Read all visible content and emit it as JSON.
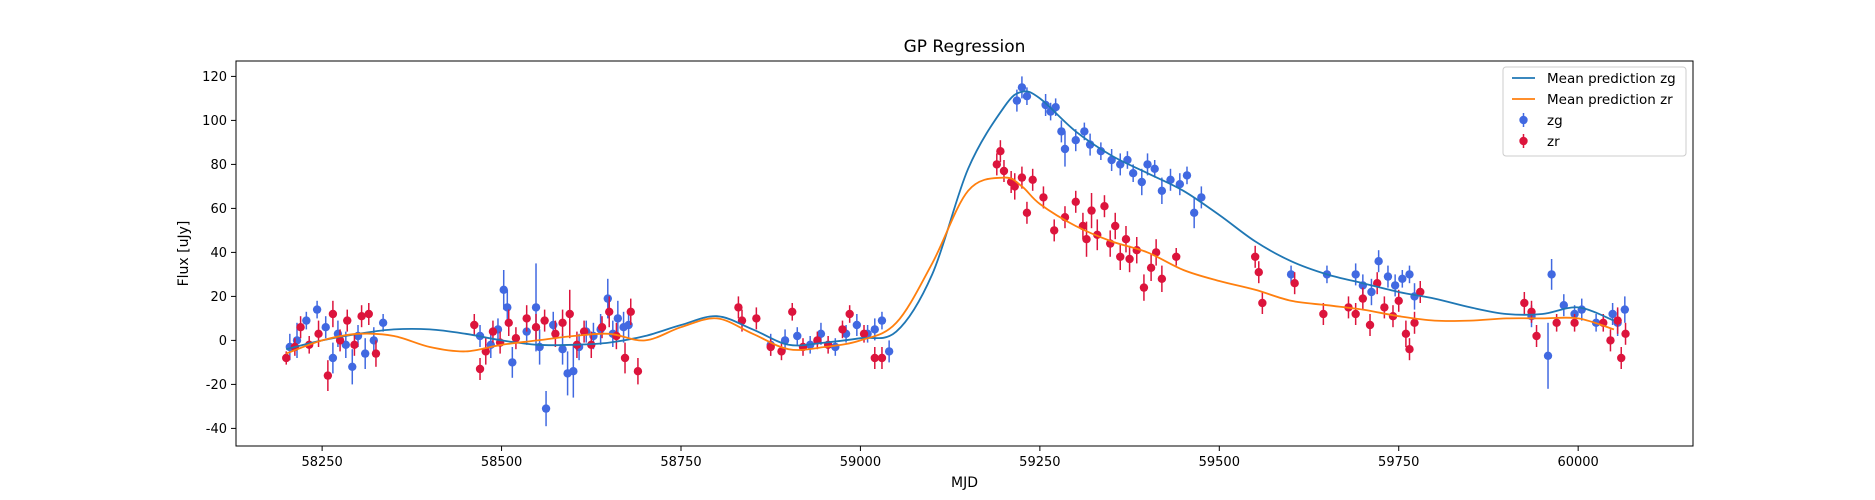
{
  "chart_data": {
    "type": "scatter",
    "title": "GP Regression",
    "xlabel": "MJD",
    "ylabel": "Flux [uJy]",
    "xlim": [
      58130,
      60160
    ],
    "ylim": [
      -48,
      127
    ],
    "xticks": [
      58250,
      58500,
      58750,
      59000,
      59250,
      59500,
      59750,
      60000
    ],
    "yticks": [
      -40,
      -20,
      0,
      20,
      40,
      60,
      80,
      100,
      120
    ],
    "legend_position": "top-right",
    "legend": [
      "Mean prediction zg",
      "Mean prediction zr",
      "zg",
      "zr"
    ],
    "colors": {
      "mean_zg": "#1f77b4",
      "mean_zr": "#ff7f0e",
      "zg": "#4169e1",
      "zr": "#dc143c"
    },
    "series": [
      {
        "name": "Mean prediction zg",
        "kind": "line",
        "x": [
          58200,
          58250,
          58300,
          58350,
          58400,
          58450,
          58500,
          58550,
          58600,
          58650,
          58700,
          58750,
          58800,
          58850,
          58900,
          58950,
          59000,
          59050,
          59100,
          59150,
          59200,
          59225,
          59250,
          59300,
          59350,
          59400,
          59450,
          59500,
          59550,
          59600,
          59650,
          59700,
          59750,
          59800,
          59850,
          59900,
          59950,
          60000,
          60050
        ],
        "y": [
          -4,
          0,
          3,
          5,
          5,
          3,
          0,
          -2,
          -2,
          -1,
          2,
          7,
          11,
          5,
          -2,
          -1,
          1,
          4,
          30,
          78,
          106,
          113,
          110,
          95,
          84,
          76,
          68,
          57,
          45,
          36,
          30,
          26,
          22,
          19,
          15,
          12,
          12,
          15,
          9
        ]
      },
      {
        "name": "Mean prediction zr",
        "kind": "line",
        "x": [
          58200,
          58250,
          58300,
          58350,
          58400,
          58450,
          58500,
          58550,
          58600,
          58650,
          58700,
          58750,
          58800,
          58850,
          58900,
          58950,
          59000,
          59050,
          59100,
          59150,
          59200,
          59225,
          59250,
          59300,
          59350,
          59400,
          59450,
          59500,
          59550,
          59600,
          59650,
          59700,
          59750,
          59800,
          59850,
          59900,
          59950,
          60000,
          60050
        ],
        "y": [
          -6,
          0,
          3,
          2,
          -3,
          -5,
          -2,
          0,
          2,
          3,
          0,
          6,
          10,
          3,
          -4,
          -3,
          0,
          8,
          35,
          68,
          74,
          70,
          62,
          52,
          45,
          40,
          32,
          27,
          23,
          18,
          16,
          14,
          11,
          9,
          9,
          10,
          10,
          10,
          5
        ]
      },
      {
        "name": "zg",
        "kind": "points",
        "points": [
          [
            58205,
            -3,
            6
          ],
          [
            58215,
            0,
            8
          ],
          [
            58228,
            9,
            4
          ],
          [
            58243,
            14,
            4
          ],
          [
            58255,
            6,
            5
          ],
          [
            58265,
            -8,
            7
          ],
          [
            58272,
            3,
            6
          ],
          [
            58283,
            -2,
            6
          ],
          [
            58292,
            -12,
            8
          ],
          [
            58300,
            2,
            5
          ],
          [
            58310,
            -6,
            7
          ],
          [
            58322,
            0,
            6
          ],
          [
            58335,
            8,
            4
          ],
          [
            58470,
            2,
            5
          ],
          [
            58485,
            -2,
            6
          ],
          [
            58495,
            5,
            5
          ],
          [
            58503,
            23,
            9
          ],
          [
            58508,
            15,
            8
          ],
          [
            58515,
            -10,
            7
          ],
          [
            58535,
            4,
            6
          ],
          [
            58548,
            15,
            20
          ],
          [
            58553,
            -3,
            8
          ],
          [
            58562,
            -31,
            8
          ],
          [
            58572,
            7,
            6
          ],
          [
            58585,
            -4,
            7
          ],
          [
            58592,
            -15,
            10
          ],
          [
            58600,
            -14,
            12
          ],
          [
            58608,
            -3,
            6
          ],
          [
            58618,
            4,
            5
          ],
          [
            58628,
            2,
            6
          ],
          [
            58638,
            5,
            7
          ],
          [
            58648,
            19,
            9
          ],
          [
            58655,
            3,
            6
          ],
          [
            58662,
            10,
            8
          ],
          [
            58670,
            6,
            7
          ],
          [
            58677,
            7,
            6
          ],
          [
            58875,
            -2,
            5
          ],
          [
            58895,
            0,
            5
          ],
          [
            58912,
            2,
            4
          ],
          [
            58930,
            -2,
            4
          ],
          [
            58945,
            3,
            5
          ],
          [
            58965,
            -3,
            4
          ],
          [
            58980,
            3,
            4
          ],
          [
            58995,
            7,
            5
          ],
          [
            59010,
            3,
            4
          ],
          [
            59020,
            5,
            5
          ],
          [
            59030,
            9,
            4
          ],
          [
            59040,
            -5,
            5
          ],
          [
            59218,
            109,
            5
          ],
          [
            59225,
            115,
            5
          ],
          [
            59232,
            111,
            4
          ],
          [
            59258,
            107,
            5
          ],
          [
            59265,
            104,
            4
          ],
          [
            59272,
            106,
            4
          ],
          [
            59280,
            95,
            5
          ],
          [
            59285,
            87,
            8
          ],
          [
            59300,
            91,
            5
          ],
          [
            59312,
            95,
            4
          ],
          [
            59320,
            89,
            5
          ],
          [
            59335,
            86,
            4
          ],
          [
            59350,
            82,
            5
          ],
          [
            59362,
            80,
            5
          ],
          [
            59372,
            82,
            4
          ],
          [
            59380,
            76,
            4
          ],
          [
            59392,
            72,
            6
          ],
          [
            59400,
            80,
            5
          ],
          [
            59410,
            78,
            4
          ],
          [
            59420,
            68,
            6
          ],
          [
            59432,
            73,
            5
          ],
          [
            59445,
            71,
            5
          ],
          [
            59455,
            75,
            4
          ],
          [
            59465,
            58,
            7
          ],
          [
            59475,
            65,
            5
          ],
          [
            59600,
            30,
            4
          ],
          [
            59650,
            30,
            4
          ],
          [
            59690,
            30,
            5
          ],
          [
            59700,
            25,
            5
          ],
          [
            59712,
            22,
            6
          ],
          [
            59722,
            36,
            5
          ],
          [
            59735,
            29,
            5
          ],
          [
            59745,
            25,
            5
          ],
          [
            59755,
            28,
            4
          ],
          [
            59765,
            30,
            4
          ],
          [
            59772,
            20,
            6
          ],
          [
            59935,
            11,
            5
          ],
          [
            59958,
            -7,
            15
          ],
          [
            59963,
            30,
            7
          ],
          [
            59980,
            16,
            5
          ],
          [
            59995,
            12,
            4
          ],
          [
            60005,
            14,
            5
          ],
          [
            60025,
            8,
            4
          ],
          [
            60048,
            12,
            5
          ],
          [
            60055,
            8,
            6
          ],
          [
            60065,
            14,
            6
          ]
        ]
      },
      {
        "name": "zr",
        "kind": "points",
        "points": [
          [
            58200,
            -8,
            3
          ],
          [
            58212,
            -3,
            4
          ],
          [
            58220,
            6,
            5
          ],
          [
            58232,
            -2,
            4
          ],
          [
            58245,
            3,
            6
          ],
          [
            58258,
            -16,
            7
          ],
          [
            58265,
            12,
            6
          ],
          [
            58275,
            0,
            5
          ],
          [
            58285,
            9,
            5
          ],
          [
            58295,
            -2,
            5
          ],
          [
            58305,
            11,
            5
          ],
          [
            58315,
            12,
            5
          ],
          [
            58325,
            -6,
            6
          ],
          [
            58462,
            7,
            5
          ],
          [
            58470,
            -13,
            5
          ],
          [
            58478,
            -5,
            6
          ],
          [
            58488,
            4,
            5
          ],
          [
            58498,
            -1,
            5
          ],
          [
            58510,
            8,
            6
          ],
          [
            58520,
            1,
            5
          ],
          [
            58535,
            10,
            6
          ],
          [
            58548,
            6,
            6
          ],
          [
            58560,
            9,
            5
          ],
          [
            58575,
            3,
            6
          ],
          [
            58585,
            8,
            6
          ],
          [
            58595,
            12,
            11
          ],
          [
            58605,
            -2,
            6
          ],
          [
            58615,
            4,
            5
          ],
          [
            58625,
            -2,
            6
          ],
          [
            58640,
            6,
            5
          ],
          [
            58650,
            13,
            7
          ],
          [
            58660,
            2,
            6
          ],
          [
            58672,
            -8,
            7
          ],
          [
            58680,
            13,
            6
          ],
          [
            58690,
            -14,
            6
          ],
          [
            58830,
            15,
            5
          ],
          [
            58835,
            9,
            5
          ],
          [
            58855,
            10,
            5
          ],
          [
            58875,
            -3,
            4
          ],
          [
            58890,
            -5,
            4
          ],
          [
            58905,
            13,
            4
          ],
          [
            58920,
            -3,
            4
          ],
          [
            58940,
            0,
            4
          ],
          [
            58955,
            -2,
            4
          ],
          [
            58975,
            5,
            4
          ],
          [
            58985,
            12,
            4
          ],
          [
            59005,
            3,
            4
          ],
          [
            59020,
            -8,
            5
          ],
          [
            59030,
            -8,
            5
          ],
          [
            59190,
            80,
            5
          ],
          [
            59195,
            86,
            5
          ],
          [
            59200,
            77,
            5
          ],
          [
            59210,
            72,
            5
          ],
          [
            59215,
            70,
            6
          ],
          [
            59225,
            74,
            5
          ],
          [
            59232,
            58,
            5
          ],
          [
            59240,
            73,
            5
          ],
          [
            59255,
            65,
            5
          ],
          [
            59270,
            50,
            5
          ],
          [
            59285,
            56,
            5
          ],
          [
            59300,
            63,
            5
          ],
          [
            59310,
            52,
            6
          ],
          [
            59315,
            46,
            8
          ],
          [
            59322,
            59,
            8
          ],
          [
            59330,
            48,
            7
          ],
          [
            59340,
            61,
            5
          ],
          [
            59348,
            44,
            6
          ],
          [
            59355,
            52,
            6
          ],
          [
            59362,
            38,
            6
          ],
          [
            59370,
            46,
            6
          ],
          [
            59375,
            37,
            6
          ],
          [
            59385,
            41,
            6
          ],
          [
            59395,
            24,
            6
          ],
          [
            59405,
            33,
            6
          ],
          [
            59412,
            40,
            6
          ],
          [
            59420,
            28,
            6
          ],
          [
            59440,
            38,
            4
          ],
          [
            59550,
            38,
            5
          ],
          [
            59555,
            31,
            5
          ],
          [
            59560,
            17,
            5
          ],
          [
            59605,
            26,
            5
          ],
          [
            59645,
            12,
            5
          ],
          [
            59680,
            15,
            5
          ],
          [
            59690,
            12,
            5
          ],
          [
            59700,
            19,
            5
          ],
          [
            59710,
            7,
            5
          ],
          [
            59720,
            26,
            5
          ],
          [
            59730,
            15,
            5
          ],
          [
            59742,
            11,
            5
          ],
          [
            59750,
            18,
            5
          ],
          [
            59760,
            3,
            6
          ],
          [
            59765,
            -4,
            5
          ],
          [
            59772,
            8,
            5
          ],
          [
            59780,
            22,
            5
          ],
          [
            59925,
            17,
            5
          ],
          [
            59935,
            13,
            5
          ],
          [
            59942,
            2,
            5
          ],
          [
            59970,
            8,
            4
          ],
          [
            59995,
            8,
            4
          ],
          [
            60035,
            8,
            4
          ],
          [
            60045,
            0,
            5
          ],
          [
            60055,
            9,
            6
          ],
          [
            60060,
            -8,
            5
          ],
          [
            60066,
            3,
            5
          ]
        ]
      }
    ]
  }
}
